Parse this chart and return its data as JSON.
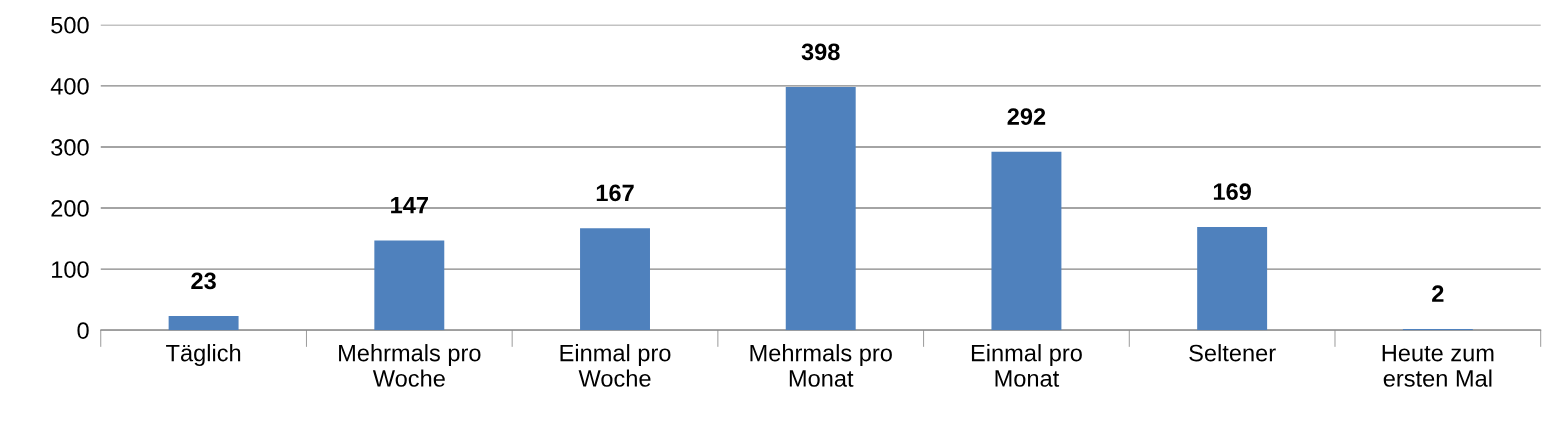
{
  "chart_data": {
    "type": "bar",
    "categories": [
      "Täglich",
      "Mehrmals pro\nWoche",
      "Einmal pro\nWoche",
      "Mehrmals pro\nMonat",
      "Einmal pro\nMonat",
      "Seltener",
      "Heute zum\nersten Mal"
    ],
    "values": [
      23,
      147,
      167,
      398,
      292,
      169,
      2
    ],
    "color": "#4f81bd",
    "ylim": [
      0,
      500
    ],
    "yticks": [
      0,
      100,
      200,
      300,
      400,
      500
    ],
    "grid": "y",
    "data_labels": true
  }
}
